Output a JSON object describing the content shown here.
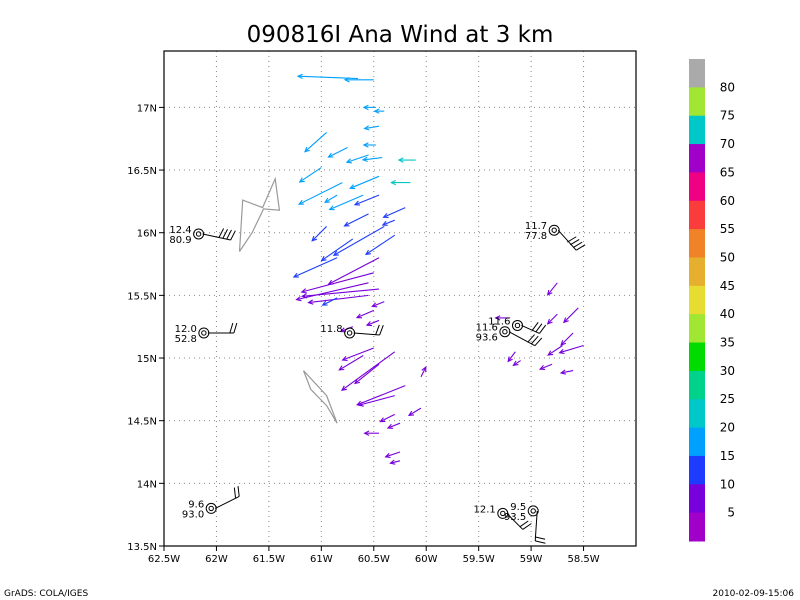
{
  "title": "090816I Ana Wind at 3 km",
  "footer": {
    "left": "GrADS: COLA/IGES",
    "right": "2010-02-09-15:06"
  },
  "chart_data": {
    "type": "scatter",
    "title": "090816I Ana Wind at 3 km",
    "xlim": [
      -62.5,
      -58.0
    ],
    "ylim": [
      13.5,
      17.45
    ],
    "x_ticks": [
      {
        "value": -62.5,
        "label": "62.5W"
      },
      {
        "value": -62.0,
        "label": "62W"
      },
      {
        "value": -61.5,
        "label": "61.5W"
      },
      {
        "value": -61.0,
        "label": "61W"
      },
      {
        "value": -60.5,
        "label": "60.5W"
      },
      {
        "value": -60.0,
        "label": "60W"
      },
      {
        "value": -59.5,
        "label": "59.5W"
      },
      {
        "value": -59.0,
        "label": "59W"
      },
      {
        "value": -58.5,
        "label": "58.5W"
      }
    ],
    "y_ticks": [
      {
        "value": 13.5,
        "label": "13.5N"
      },
      {
        "value": 14.0,
        "label": "14N"
      },
      {
        "value": 14.5,
        "label": "14.5N"
      },
      {
        "value": 15.0,
        "label": "15N"
      },
      {
        "value": 15.5,
        "label": "15.5N"
      },
      {
        "value": 16.0,
        "label": "16N"
      },
      {
        "value": 16.5,
        "label": "16.5N"
      },
      {
        "value": 17.0,
        "label": "17N"
      }
    ],
    "grid": true,
    "colorbar": {
      "labels": [
        "5",
        "10",
        "15",
        "20",
        "25",
        "30",
        "35",
        "40",
        "45",
        "50",
        "55",
        "60",
        "65",
        "70",
        "75",
        "80"
      ],
      "colors": [
        "#a000c8",
        "#7800dc",
        "#1e3cff",
        "#00a0ff",
        "#00c8c8",
        "#00d28c",
        "#00dc00",
        "#a0e632",
        "#e6dc32",
        "#e6af2d",
        "#f08228",
        "#fa3c3c",
        "#f00082",
        "#a000c8",
        "#00c8c8",
        "#a0e632",
        "#aaaaaa"
      ]
    },
    "stations": [
      {
        "lon": -62.17,
        "lat": 15.99,
        "top": "12.4",
        "bottom": "80.9"
      },
      {
        "lon": -62.12,
        "lat": 15.2,
        "top": "12.0",
        "bottom": "52.8"
      },
      {
        "lon": -60.73,
        "lat": 15.2,
        "top": "11.8",
        "bottom": ""
      },
      {
        "lon": -62.05,
        "lat": 13.8,
        "top": "9.6",
        "bottom": "93.0"
      },
      {
        "lon": -58.78,
        "lat": 16.02,
        "top": "11.7",
        "bottom": "77.8"
      },
      {
        "lon": -59.25,
        "lat": 15.21,
        "top": "11.6",
        "bottom": "93.6"
      },
      {
        "lon": -59.13,
        "lat": 15.26,
        "top": "11.6",
        "bottom": ""
      },
      {
        "lon": -59.27,
        "lat": 13.76,
        "top": "12.1",
        "bottom": ""
      },
      {
        "lon": -58.98,
        "lat": 13.78,
        "top": "9.5",
        "bottom": "93.5"
      }
    ],
    "land_outlines": [
      {
        "name": "Guadeloupe",
        "points": [
          [
            -61.78,
            15.85
          ],
          [
            -61.75,
            16.26
          ],
          [
            -61.56,
            16.2
          ],
          [
            -61.44,
            16.43
          ],
          [
            -61.4,
            16.18
          ],
          [
            -61.55,
            16.19
          ],
          [
            -61.66,
            16.0
          ],
          [
            -61.78,
            15.85
          ]
        ]
      },
      {
        "name": "Martinique",
        "points": [
          [
            -61.17,
            14.9
          ],
          [
            -61.1,
            14.75
          ],
          [
            -60.95,
            14.62
          ],
          [
            -60.85,
            14.48
          ],
          [
            -60.95,
            14.7
          ],
          [
            -61.17,
            14.9
          ]
        ]
      }
    ],
    "wind_vectors": [
      {
        "lon": -60.65,
        "lat": 17.23,
        "u": -2.5,
        "v": 0.1,
        "speed": 18
      },
      {
        "lon": -60.5,
        "lat": 17.22,
        "u": -1.2,
        "v": 0.0,
        "speed": 17
      },
      {
        "lon": -60.48,
        "lat": 17.0,
        "u": -0.5,
        "v": 0.0,
        "speed": 16
      },
      {
        "lon": -60.4,
        "lat": 16.97,
        "u": -0.4,
        "v": 0.0,
        "speed": 16
      },
      {
        "lon": -60.45,
        "lat": 16.85,
        "u": -0.6,
        "v": -0.1,
        "speed": 17
      },
      {
        "lon": -60.48,
        "lat": 16.7,
        "u": -0.5,
        "v": 0.0,
        "speed": 17
      },
      {
        "lon": -60.42,
        "lat": 16.6,
        "u": -0.8,
        "v": -0.1,
        "speed": 18
      },
      {
        "lon": -60.1,
        "lat": 16.58,
        "u": -0.7,
        "v": 0.0,
        "speed": 21
      },
      {
        "lon": -60.95,
        "lat": 16.8,
        "u": -0.9,
        "v": -0.8,
        "speed": 19
      },
      {
        "lon": -60.75,
        "lat": 16.68,
        "u": -0.8,
        "v": -0.4,
        "speed": 18
      },
      {
        "lon": -60.55,
        "lat": 16.62,
        "u": -0.9,
        "v": -0.3,
        "speed": 18
      },
      {
        "lon": -60.8,
        "lat": 16.4,
        "u": -1.8,
        "v": -0.9,
        "speed": 18
      },
      {
        "lon": -60.6,
        "lat": 16.3,
        "u": -1.4,
        "v": -0.6,
        "speed": 17
      },
      {
        "lon": -60.15,
        "lat": 16.4,
        "u": -0.8,
        "v": 0.0,
        "speed": 21
      },
      {
        "lon": -60.45,
        "lat": 16.45,
        "u": -1.2,
        "v": -0.5,
        "speed": 17
      },
      {
        "lon": -61.0,
        "lat": 16.52,
        "u": -0.9,
        "v": -0.6,
        "speed": 18
      },
      {
        "lon": -60.85,
        "lat": 16.3,
        "u": -0.5,
        "v": -0.3,
        "speed": 16
      },
      {
        "lon": -60.55,
        "lat": 16.15,
        "u": -1.0,
        "v": -0.5,
        "speed": 13
      },
      {
        "lon": -60.45,
        "lat": 16.3,
        "u": -1.0,
        "v": -0.4,
        "speed": 13
      },
      {
        "lon": -60.2,
        "lat": 16.2,
        "u": -0.9,
        "v": -0.4,
        "speed": 11
      },
      {
        "lon": -60.3,
        "lat": 16.1,
        "u": -0.5,
        "v": -0.2,
        "speed": 11
      },
      {
        "lon": -60.95,
        "lat": 16.05,
        "u": -0.6,
        "v": -0.6,
        "speed": 14
      },
      {
        "lon": -60.7,
        "lat": 15.95,
        "u": -1.3,
        "v": -0.9,
        "speed": 12
      },
      {
        "lon": -60.4,
        "lat": 16.05,
        "u": -2.1,
        "v": -1.2,
        "speed": 10
      },
      {
        "lon": -60.3,
        "lat": 15.98,
        "u": -1.2,
        "v": -0.8,
        "speed": 10
      },
      {
        "lon": -60.85,
        "lat": 15.8,
        "u": -1.8,
        "v": -0.8,
        "speed": 10
      },
      {
        "lon": -60.45,
        "lat": 15.8,
        "u": -2.1,
        "v": -1.1,
        "speed": 9
      },
      {
        "lon": -60.5,
        "lat": 15.68,
        "u": -3.0,
        "v": -0.8,
        "speed": 9
      },
      {
        "lon": -60.55,
        "lat": 15.6,
        "u": -3.0,
        "v": -0.7,
        "speed": 8
      },
      {
        "lon": -60.45,
        "lat": 15.55,
        "u": -3.2,
        "v": -0.3,
        "speed": 8
      },
      {
        "lon": -60.55,
        "lat": 15.5,
        "u": -2.5,
        "v": -0.3,
        "speed": 8
      },
      {
        "lon": -60.85,
        "lat": 15.48,
        "u": -0.6,
        "v": -0.3,
        "speed": 12
      },
      {
        "lon": -60.5,
        "lat": 15.38,
        "u": -0.7,
        "v": -0.3,
        "speed": 9
      },
      {
        "lon": -60.45,
        "lat": 15.3,
        "u": -0.5,
        "v": -0.2,
        "speed": 8
      },
      {
        "lon": -60.4,
        "lat": 15.45,
        "u": -0.5,
        "v": -0.2,
        "speed": 8
      },
      {
        "lon": -60.7,
        "lat": 15.25,
        "u": -0.5,
        "v": -0.2,
        "speed": 7
      },
      {
        "lon": -60.5,
        "lat": 15.08,
        "u": -1.3,
        "v": -0.5,
        "speed": 7
      },
      {
        "lon": -60.6,
        "lat": 15.02,
        "u": -1.0,
        "v": -0.6,
        "speed": 7
      },
      {
        "lon": -60.3,
        "lat": 15.05,
        "u": -2.2,
        "v": -1.6,
        "speed": 8
      },
      {
        "lon": -60.45,
        "lat": 14.95,
        "u": -1.0,
        "v": -0.8,
        "speed": 7
      },
      {
        "lon": -60.2,
        "lat": 14.78,
        "u": -2.0,
        "v": -0.8,
        "speed": 7
      },
      {
        "lon": -60.3,
        "lat": 14.7,
        "u": -1.5,
        "v": -0.4,
        "speed": 7
      },
      {
        "lon": -60.3,
        "lat": 14.55,
        "u": -0.6,
        "v": -0.3,
        "speed": 7
      },
      {
        "lon": -60.05,
        "lat": 14.6,
        "u": -0.5,
        "v": -0.3,
        "speed": 7
      },
      {
        "lon": -60.05,
        "lat": 14.85,
        "u": 0.2,
        "v": 0.4,
        "speed": 7
      },
      {
        "lon": -60.25,
        "lat": 14.48,
        "u": -0.5,
        "v": -0.2,
        "speed": 7
      },
      {
        "lon": -60.45,
        "lat": 14.4,
        "u": -0.6,
        "v": 0.0,
        "speed": 7
      },
      {
        "lon": -60.25,
        "lat": 14.25,
        "u": -0.6,
        "v": -0.2,
        "speed": 7
      },
      {
        "lon": -60.25,
        "lat": 14.18,
        "u": -0.4,
        "v": -0.1,
        "speed": 7
      },
      {
        "lon": -58.75,
        "lat": 15.6,
        "u": -0.4,
        "v": -0.5,
        "speed": 7
      },
      {
        "lon": -58.55,
        "lat": 15.4,
        "u": -0.6,
        "v": -0.6,
        "speed": 7
      },
      {
        "lon": -58.75,
        "lat": 15.35,
        "u": -0.4,
        "v": -0.4,
        "speed": 7
      },
      {
        "lon": -58.6,
        "lat": 15.2,
        "u": -0.5,
        "v": -0.5,
        "speed": 7
      },
      {
        "lon": -58.7,
        "lat": 15.1,
        "u": -0.6,
        "v": -0.4,
        "speed": 7
      },
      {
        "lon": -58.5,
        "lat": 15.1,
        "u": -1.0,
        "v": -0.3,
        "speed": 7
      },
      {
        "lon": -58.6,
        "lat": 14.9,
        "u": -0.5,
        "v": -0.1,
        "speed": 7
      },
      {
        "lon": -58.8,
        "lat": 14.95,
        "u": -0.5,
        "v": -0.2,
        "speed": 7
      },
      {
        "lon": -59.2,
        "lat": 15.32,
        "u": -0.6,
        "v": 0.0,
        "speed": 9
      },
      {
        "lon": -59.15,
        "lat": 15.05,
        "u": -0.3,
        "v": -0.4,
        "speed": 8
      },
      {
        "lon": -59.1,
        "lat": 14.98,
        "u": -0.3,
        "v": -0.2,
        "speed": 8
      }
    ]
  }
}
